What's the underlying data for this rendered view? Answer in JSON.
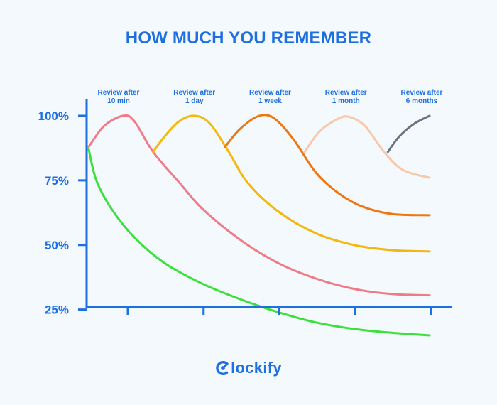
{
  "title": "HOW MUCH YOU REMEMBER",
  "brand": {
    "name": "Clockify",
    "text": "lockify",
    "color": "#1e6fe0"
  },
  "colors": {
    "accent": "#1e6fe0",
    "axis": "#1e6fe0",
    "background": "#f4f9fd"
  },
  "chart_data": {
    "type": "line",
    "title": "HOW MUCH YOU REMEMBER",
    "xlabel": "",
    "ylabel": "",
    "ylim": [
      0,
      100
    ],
    "grid": false,
    "legend": "none",
    "y_ticks": [
      {
        "value": 100,
        "label": "100%"
      },
      {
        "value": 75,
        "label": "75%"
      },
      {
        "value": 50,
        "label": "50%"
      },
      {
        "value": 25,
        "label": "25%"
      }
    ],
    "x_ticks": [
      0.5,
      1.5,
      2.5,
      3.5,
      4.5
    ],
    "annotations": [
      {
        "x": 0.5,
        "line1": "Review after",
        "line2": "10 min"
      },
      {
        "x": 1.5,
        "line1": "Review after",
        "line2": "1 day"
      },
      {
        "x": 2.5,
        "line1": "Review after",
        "line2": "1 week"
      },
      {
        "x": 3.5,
        "line1": "Review after",
        "line2": "1 month"
      },
      {
        "x": 4.5,
        "line1": "Review after",
        "line2": "6 months"
      }
    ],
    "series": [
      {
        "color": "#3be03b",
        "points": [
          [
            0.0,
            87
          ],
          [
            0.1,
            75
          ],
          [
            0.3,
            64
          ],
          [
            0.6,
            53
          ],
          [
            1.0,
            43
          ],
          [
            1.5,
            35
          ],
          [
            2.0,
            29
          ],
          [
            2.5,
            24
          ],
          [
            3.0,
            20
          ],
          [
            3.5,
            17.5
          ],
          [
            4.0,
            16
          ],
          [
            4.5,
            15
          ]
        ]
      },
      {
        "color": "#f07b86",
        "points": [
          [
            0.0,
            88
          ],
          [
            0.2,
            96
          ],
          [
            0.45,
            100
          ],
          [
            0.6,
            98
          ],
          [
            0.85,
            86
          ],
          [
            1.2,
            74
          ],
          [
            1.5,
            64
          ],
          [
            2.0,
            52
          ],
          [
            2.5,
            43
          ],
          [
            3.0,
            37
          ],
          [
            3.5,
            33
          ],
          [
            4.0,
            31
          ],
          [
            4.5,
            30.5
          ]
        ]
      },
      {
        "color": "#f5b70c",
        "points": [
          [
            0.85,
            86
          ],
          [
            1.0,
            92
          ],
          [
            1.2,
            98
          ],
          [
            1.4,
            100
          ],
          [
            1.6,
            97
          ],
          [
            1.85,
            86
          ],
          [
            2.1,
            74
          ],
          [
            2.5,
            63
          ],
          [
            3.0,
            54.5
          ],
          [
            3.5,
            50
          ],
          [
            4.0,
            48
          ],
          [
            4.5,
            47.5
          ]
        ]
      },
      {
        "color": "#f07610",
        "points": [
          [
            1.8,
            88
          ],
          [
            2.0,
            95
          ],
          [
            2.25,
            100
          ],
          [
            2.45,
            99
          ],
          [
            2.7,
            91
          ],
          [
            3.0,
            78
          ],
          [
            3.3,
            70
          ],
          [
            3.6,
            65
          ],
          [
            4.0,
            62
          ],
          [
            4.5,
            61.5
          ]
        ]
      },
      {
        "color": "#f8c8a8",
        "points": [
          [
            2.85,
            86
          ],
          [
            3.05,
            94
          ],
          [
            3.3,
            99
          ],
          [
            3.45,
            99.5
          ],
          [
            3.65,
            96
          ],
          [
            3.9,
            86
          ],
          [
            4.15,
            79
          ],
          [
            4.5,
            76
          ]
        ]
      },
      {
        "color": "#6b7280",
        "points": [
          [
            3.95,
            86
          ],
          [
            4.1,
            92
          ],
          [
            4.3,
            97
          ],
          [
            4.5,
            100
          ]
        ]
      }
    ]
  }
}
